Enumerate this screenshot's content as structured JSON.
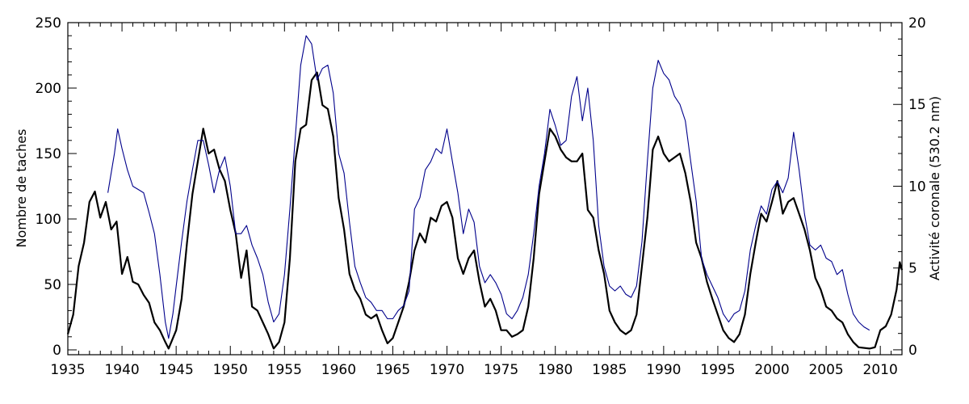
{
  "chart_data": {
    "type": "line",
    "title": "",
    "xlabel": "",
    "ylabel": "Nombre de taches",
    "ylabel_right": "Activité coronale (530.2 nm)",
    "xlim": [
      1935,
      2012
    ],
    "ylim": [
      -3.7,
      250
    ],
    "ylim_right": [
      -0.3,
      20
    ],
    "xticks": [
      1935,
      1940,
      1945,
      1950,
      1955,
      1960,
      1965,
      1970,
      1975,
      1980,
      1985,
      1990,
      1995,
      2000,
      2005,
      2010
    ],
    "yticks": [
      0,
      50,
      100,
      150,
      200,
      250
    ],
    "yticks_right": [
      0,
      5,
      10,
      15,
      20
    ],
    "grid": false,
    "colors": {
      "sunspots": "#000000",
      "coronal": "#00008b"
    },
    "series": [
      {
        "name": "Nombre de taches",
        "axis": "left",
        "x": [
          1935,
          1935.5,
          1936,
          1936.5,
          1937,
          1937.5,
          1938,
          1938.5,
          1939,
          1939.5,
          1940,
          1940.5,
          1941,
          1941.5,
          1942,
          1942.5,
          1943,
          1943.5,
          1944,
          1944.3,
          1945,
          1945.5,
          1946,
          1946.5,
          1947,
          1947.5,
          1948,
          1948.5,
          1949,
          1949.5,
          1950,
          1950.5,
          1951,
          1951.5,
          1952,
          1952.5,
          1953,
          1953.5,
          1954,
          1954.5,
          1955,
          1955.5,
          1956,
          1956.5,
          1957,
          1957.5,
          1958,
          1958.5,
          1959,
          1959.5,
          1960,
          1960.5,
          1961,
          1961.5,
          1962,
          1962.5,
          1963,
          1963.5,
          1964,
          1964.5,
          1965,
          1965.5,
          1966,
          1966.5,
          1967,
          1967.5,
          1968,
          1968.5,
          1969,
          1969.5,
          1970,
          1970.5,
          1971,
          1971.5,
          1972,
          1972.5,
          1973,
          1973.5,
          1974,
          1974.5,
          1975,
          1975.5,
          1976,
          1976.5,
          1977,
          1977.5,
          1978,
          1978.5,
          1979,
          1979.5,
          1980,
          1980.5,
          1981,
          1981.5,
          1982,
          1982.5,
          1983,
          1983.5,
          1984,
          1984.5,
          1985,
          1985.5,
          1986,
          1986.5,
          1987,
          1987.5,
          1988,
          1988.5,
          1989,
          1989.5,
          1990,
          1990.5,
          1991,
          1991.5,
          1992,
          1992.5,
          1993,
          1993.5,
          1994,
          1994.5,
          1995,
          1995.5,
          1996,
          1996.5,
          1997,
          1997.5,
          1998,
          1998.5,
          1999,
          1999.5,
          2000,
          2000.5,
          2001,
          2001.5,
          2002,
          2002.5,
          2003,
          2003.5,
          2004,
          2004.5,
          2005,
          2005.5,
          2006,
          2006.5,
          2007,
          2007.5,
          2008,
          2009,
          2009.5,
          2010,
          2010.5,
          2011,
          2011.5,
          2011.8,
          2012
        ],
        "y": [
          12,
          27,
          64,
          82,
          113,
          121,
          101,
          113,
          92,
          98,
          58,
          71,
          52,
          50,
          42,
          36,
          21,
          15,
          6,
          1,
          15,
          39,
          82,
          119,
          144,
          169,
          150,
          153,
          138,
          129,
          107,
          89,
          55,
          76,
          33,
          30,
          21,
          12,
          1,
          6,
          21,
          70,
          144,
          169,
          172,
          206,
          212,
          187,
          184,
          163,
          116,
          92,
          58,
          46,
          39,
          27,
          24,
          27,
          15,
          5,
          9,
          21,
          33,
          52,
          76,
          89,
          82,
          101,
          98,
          110,
          113,
          101,
          70,
          58,
          70,
          76,
          52,
          33,
          39,
          30,
          15,
          15,
          10,
          12,
          15,
          33,
          70,
          119,
          144,
          169,
          163,
          153,
          147,
          144,
          144,
          150,
          107,
          101,
          76,
          58,
          30,
          21,
          15,
          12,
          15,
          27,
          64,
          101,
          153,
          163,
          150,
          144,
          147,
          150,
          135,
          113,
          82,
          70,
          52,
          39,
          27,
          15,
          9,
          6,
          12,
          27,
          58,
          82,
          104,
          98,
          113,
          129,
          104,
          113,
          116,
          104,
          92,
          76,
          55,
          46,
          33,
          30,
          24,
          21,
          12,
          6,
          2,
          1,
          2,
          15,
          18,
          27,
          46,
          67,
          61
        ]
      },
      {
        "name": "Activité coronale (530.2 nm)",
        "axis": "right",
        "x": [
          1938.7,
          1939.3,
          1939.6,
          1940,
          1940.5,
          1941,
          1941.5,
          1942,
          1942.5,
          1943,
          1943.5,
          1944,
          1944.3,
          1944.7,
          1945,
          1945.5,
          1946,
          1946.5,
          1947,
          1947.5,
          1948,
          1948.5,
          1949,
          1949.5,
          1950,
          1950.5,
          1951,
          1951.5,
          1952,
          1952.5,
          1953,
          1953.5,
          1954,
          1954.5,
          1955,
          1955.5,
          1956,
          1956.5,
          1957,
          1957.5,
          1958,
          1958.5,
          1959,
          1959.5,
          1960,
          1960.5,
          1961,
          1961.5,
          1962,
          1962.5,
          1963,
          1963.5,
          1964,
          1964.5,
          1965,
          1965.5,
          1966,
          1966.5,
          1967,
          1967.5,
          1968,
          1968.5,
          1969,
          1969.5,
          1970,
          1970.5,
          1971,
          1971.5,
          1972,
          1972.5,
          1973,
          1973.5,
          1974,
          1974.5,
          1975,
          1975.5,
          1976,
          1976.5,
          1977,
          1977.5,
          1978,
          1978.5,
          1979,
          1979.5,
          1980,
          1980.5,
          1981,
          1981.5,
          1982,
          1982.5,
          1983,
          1983.5,
          1984,
          1984.5,
          1985,
          1985.5,
          1986,
          1986.5,
          1987,
          1987.5,
          1988,
          1988.5,
          1989,
          1989.5,
          1990,
          1990.5,
          1991,
          1991.5,
          1992,
          1992.5,
          1993,
          1993.5,
          1994,
          1994.5,
          1995,
          1995.5,
          1996,
          1996.5,
          1997,
          1997.5,
          1998,
          1998.5,
          1999,
          1999.5,
          2000,
          2000.5,
          2001,
          2001.5,
          2002,
          2002.5,
          2003,
          2003.5,
          2004,
          2004.5,
          2005,
          2005.5,
          2006,
          2006.5,
          2007,
          2007.5,
          2008,
          2008.5,
          2009
        ],
        "y": [
          9.6,
          12.0,
          13.5,
          12.3,
          11.0,
          10.0,
          9.8,
          9.6,
          8.4,
          7.1,
          4.6,
          1.7,
          0.7,
          2.2,
          3.9,
          6.6,
          9.1,
          11.0,
          12.8,
          12.8,
          11.3,
          9.6,
          11.0,
          11.8,
          10.0,
          7.1,
          7.1,
          7.6,
          6.4,
          5.6,
          4.6,
          2.9,
          1.7,
          2.2,
          4.6,
          8.6,
          13.0,
          17.4,
          19.2,
          18.7,
          16.5,
          17.2,
          17.4,
          15.7,
          12.0,
          10.8,
          7.8,
          5.1,
          4.1,
          3.2,
          2.9,
          2.4,
          2.4,
          1.9,
          1.9,
          2.4,
          2.7,
          3.6,
          8.6,
          9.3,
          11.0,
          11.5,
          12.3,
          12.0,
          13.5,
          11.5,
          9.6,
          7.1,
          8.6,
          7.8,
          5.1,
          4.1,
          4.6,
          4.1,
          3.4,
          2.2,
          1.9,
          2.4,
          3.2,
          4.6,
          7.1,
          10.0,
          12.0,
          14.7,
          13.7,
          12.5,
          12.8,
          15.5,
          16.7,
          14.0,
          16.0,
          12.8,
          7.6,
          5.1,
          3.9,
          3.6,
          3.9,
          3.4,
          3.2,
          3.9,
          6.6,
          11.5,
          16.0,
          17.7,
          16.9,
          16.5,
          15.5,
          15.0,
          14.0,
          11.5,
          9.1,
          5.6,
          4.6,
          3.9,
          3.2,
          2.2,
          1.7,
          2.2,
          2.4,
          3.6,
          6.1,
          7.6,
          8.8,
          8.3,
          9.8,
          10.3,
          9.6,
          10.5,
          13.3,
          11.0,
          8.3,
          6.4,
          6.1,
          6.4,
          5.6,
          5.4,
          4.6,
          4.9,
          3.4,
          2.2,
          1.7,
          1.4,
          1.2
        ]
      }
    ]
  }
}
